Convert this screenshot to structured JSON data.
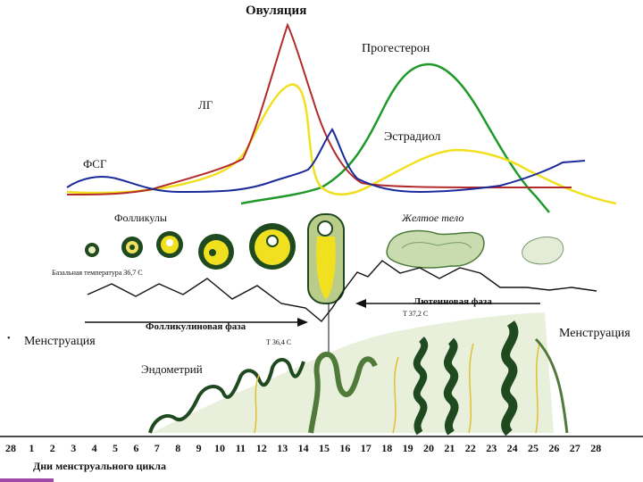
{
  "labels": {
    "ovulation": "Овуляция",
    "progesterone": "Прогестерон",
    "lh": "ЛГ",
    "estradiol": "Эстрадиол",
    "fsh": "ФСГ",
    "follicles": "Фолликулы",
    "corpus_luteum": "Желтое тело",
    "basal_temp": "Базальная температура 36,7 С",
    "luteal_phase": "Лютеиновая фаза",
    "temp_high": "Т 37,2 С",
    "follicular_phase": "Фолликулиновая фаза",
    "temp_low": "Т 36,4 С",
    "menstruation_left": "Менструация",
    "menstruation_right": "Менструация",
    "endometrium": "Эндометрий",
    "axis_title": "Дни менструального цикла",
    "bullet": "•"
  },
  "days": [
    "28",
    "1",
    "2",
    "3",
    "4",
    "5",
    "6",
    "7",
    "8",
    "9",
    "10",
    "11",
    "12",
    "13",
    "14",
    "15",
    "16",
    "17",
    "18",
    "19",
    "20",
    "21",
    "22",
    "23",
    "24",
    "25",
    "26",
    "27",
    "28"
  ],
  "colors": {
    "lh": "#b22a2a",
    "fsh": "#1a2a9a",
    "estradiol": "#f0e020",
    "progesterone": "#1f9a2a",
    "endometrium_dark": "#1f4a1f",
    "endometrium_light": "#8fba7f",
    "follicle_yellow": "#f0e020",
    "corpus_light": "#c9dcb0"
  },
  "icons": {
    "phase_arrows": "arrow-icon"
  }
}
